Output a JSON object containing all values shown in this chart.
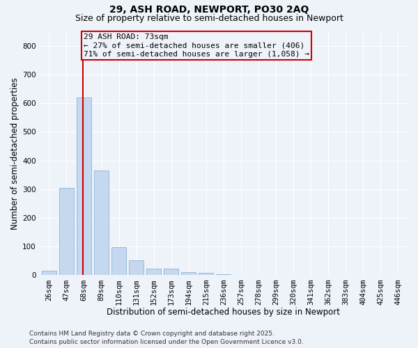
{
  "title_line1": "29, ASH ROAD, NEWPORT, PO30 2AQ",
  "title_line2": "Size of property relative to semi-detached houses in Newport",
  "xlabel": "Distribution of semi-detached houses by size in Newport",
  "ylabel": "Number of semi-detached properties",
  "categories": [
    "26sqm",
    "47sqm",
    "68sqm",
    "89sqm",
    "110sqm",
    "131sqm",
    "152sqm",
    "173sqm",
    "194sqm",
    "215sqm",
    "236sqm",
    "257sqm",
    "278sqm",
    "299sqm",
    "320sqm",
    "341sqm",
    "362sqm",
    "383sqm",
    "404sqm",
    "425sqm",
    "446sqm"
  ],
  "values": [
    15,
    305,
    620,
    365,
    97,
    52,
    22,
    22,
    10,
    8,
    3,
    1,
    1,
    0,
    0,
    0,
    0,
    0,
    0,
    0,
    0
  ],
  "bar_color": "#c5d8f0",
  "bar_edge_color": "#8ab4d8",
  "subject_bar_index": 2,
  "subject_label": "29 ASH ROAD: 73sqm",
  "annotation_line1": "← 27% of semi-detached houses are smaller (406)",
  "annotation_line2": "71% of semi-detached houses are larger (1,058) →",
  "line_color": "#cc0000",
  "box_edge_color": "#cc0000",
  "footnote1": "Contains HM Land Registry data © Crown copyright and database right 2025.",
  "footnote2": "Contains public sector information licensed under the Open Government Licence v3.0.",
  "ylim": [
    0,
    850
  ],
  "yticks": [
    0,
    100,
    200,
    300,
    400,
    500,
    600,
    700,
    800
  ],
  "bg_color": "#eef2f9",
  "grid_color": "#ffffff",
  "title_fontsize": 10,
  "subtitle_fontsize": 9,
  "axis_label_fontsize": 8.5,
  "tick_fontsize": 7.5,
  "annotation_fontsize": 8,
  "footnote_fontsize": 6.5
}
